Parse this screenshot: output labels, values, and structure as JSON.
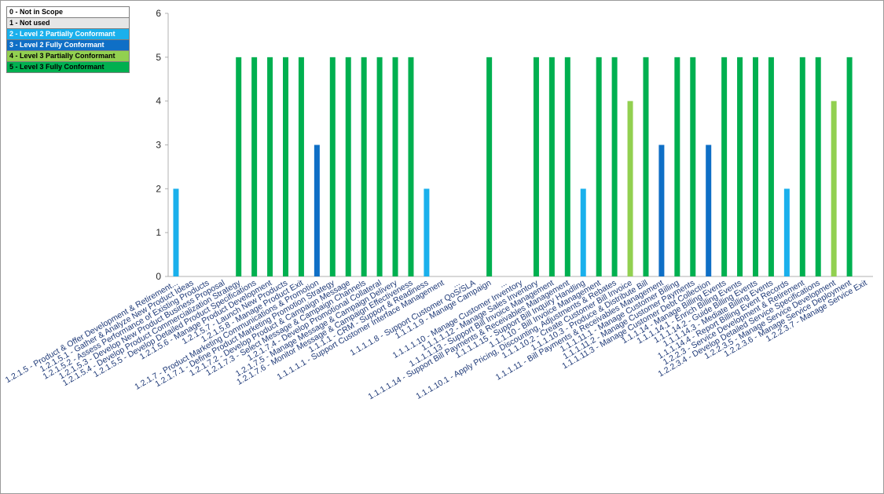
{
  "legend": [
    {
      "label": "0 - Not in Scope",
      "color": "#ffffff",
      "text_color": "#000000"
    },
    {
      "label": "1 - Not used",
      "color": "#e6e6e6",
      "text_color": "#000000"
    },
    {
      "label": "2 - Level 2 Partially Conformant",
      "color": "#1ab0ec",
      "text_color": "#ffffff"
    },
    {
      "label": "3 - Level 2 Fully Conformant",
      "color": "#0f6fc6",
      "text_color": "#ffffff"
    },
    {
      "label": "4 - Level 3 Partially Conformant",
      "color": "#92d050",
      "text_color": "#000000"
    },
    {
      "label": "5 - Level 3 Fully Conformant",
      "color": "#00b050",
      "text_color": "#000000"
    }
  ],
  "chart_data": {
    "type": "bar",
    "title": "",
    "xlabel": "",
    "ylabel": "",
    "ylim": [
      0,
      6
    ],
    "yticks": [
      0,
      1,
      2,
      3,
      4,
      5,
      6
    ],
    "grid": false,
    "legend_position": "top-left",
    "level_colors": {
      "2": "#1ab0ec",
      "3": "#0f6fc6",
      "4": "#92d050",
      "5": "#00b050"
    },
    "categories": [
      "1.2.1.5 - Product & Offer Development & Retirement...",
      "1.2.1.5.1 - Gather & Analyze New Product Ideas",
      "1.2.1.5.2 - Assess Performance of Existing Products",
      "1.2.1.5.3 - Develop New Product Business Proposal",
      "1.2.1.5.4 - Develop Product Commercialization Strategy",
      "1.2.1.5.5 - Develop Detailed Product Specifications",
      "1.2.1.5.6 - Manage Product Development",
      "1.2.1.5.7 - Launch New Products",
      "1.2.1.5.8 - Manage Product Exit",
      "1.2.1.7 - Product Marketing Communications & Promotion",
      "1.2.1.7.1 - Define Product Marketing Promotion Strategy",
      "1.2.1.7.2 - Develop Product & Campaign Message",
      "1.2.1.7.3 - Select Message & Campaign Channels",
      "1.2.1.7.4 - Develop Promotional Collateral",
      "1.2.1.7.5 - Manage Message & Campaign Delivery",
      "1.2.1.7.6 - Monitor Message & Campaign Effectiveness",
      "1.1.1.1 - CRM - Support & Readiness",
      "1.1.1.1.1 - Support Customer Interface Management",
      "...",
      "1.1.1.1.8 - Support Customer QoS/SLA",
      "1.1.1.1.9 - Manage Campaign",
      "...",
      "1.1.1.1.10 - Manage Customer Inventory",
      "1.1.1.1.12 - Manage Sales Inventory",
      "1.1.1.1.13 - Support Bill Invoice Management",
      "1.1.1.1.14 - Support Bill Payments & Receivables Management",
      "1.1.1.1.15 - Support Bill Inquiry Handling",
      "1.1.1.10 - Bill Invoice Management",
      "1.1.1.10.1 - Apply Pricing, Discounting, Adjustments & Rebates",
      "1.1.1.10.2 - Create Customer Bill Invoice",
      "1.1.1.10.3 - Produce & Distribute Bill",
      "1.1.1.11 - Bill Payments & Receivables Management",
      "1.1.1.11.1 - Manage Customer Billing",
      "1.1.1.11.2 - Manage Customer Payments",
      "1.1.1.11.3 - Manage Customer Debt Collection",
      "1.1.1.14 - Manage Billing Events",
      "1.1.1.14.1 - Enrich Billing Events",
      "1.1.1.14.2 - Guide Billing Events",
      "1.1.1.14.3 - Mediate Billing Events",
      "1.1.1.14.4 - Report Billing Event Records",
      "1.2.2.3 - Service Development & Retirement",
      "1.2.2.3.4 - Develop Detailed Service Specifications",
      "1.2.2.3.5 - Manage Service Development",
      "1.2.2.3.6 - Manage Service Deployment",
      "1.2.2.3.7 - Manage Service Exit"
    ],
    "values": [
      2,
      0,
      0,
      0,
      5,
      5,
      5,
      5,
      5,
      3,
      5,
      5,
      5,
      5,
      5,
      5,
      2,
      0,
      0,
      0,
      5,
      0,
      0,
      5,
      5,
      5,
      2,
      5,
      5,
      4,
      5,
      3,
      5,
      5,
      3,
      5,
      5,
      5,
      5,
      2,
      5,
      5,
      4,
      5,
      0
    ]
  }
}
